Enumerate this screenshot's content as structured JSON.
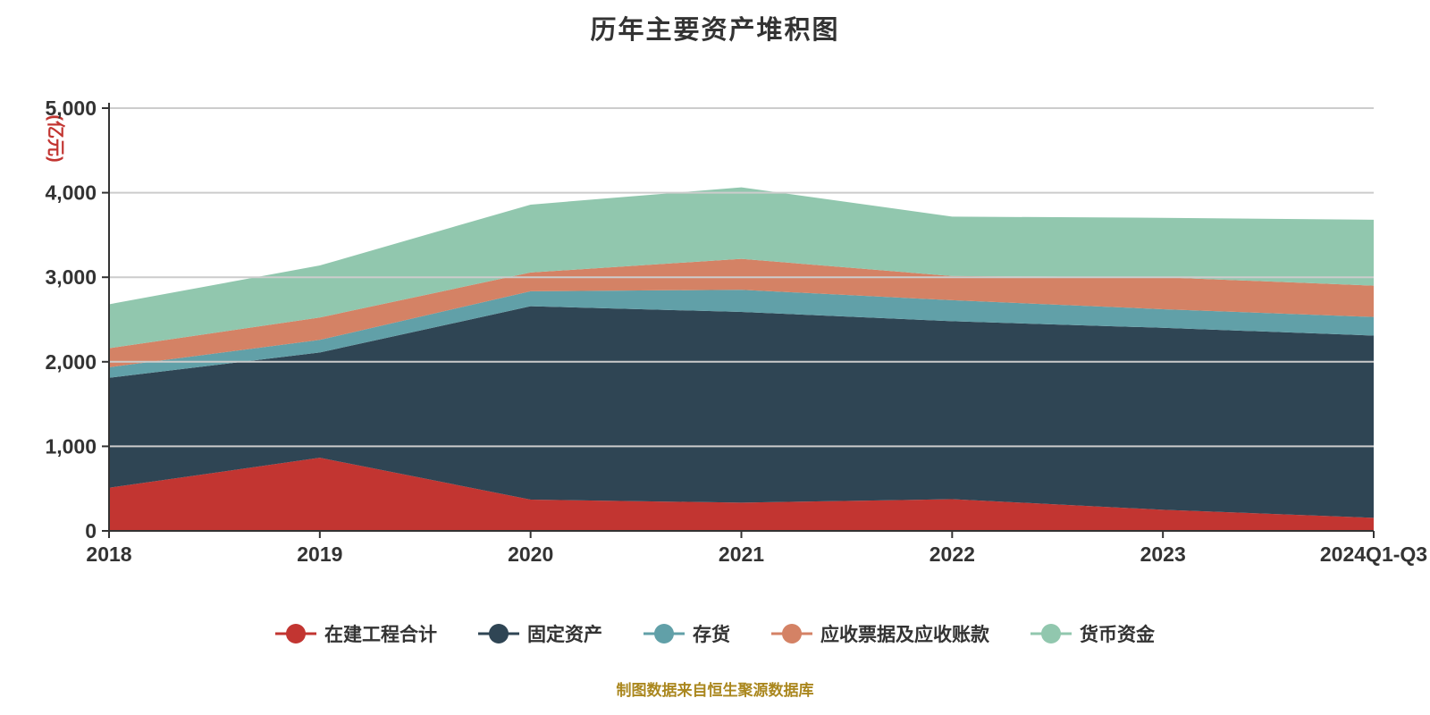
{
  "chart_data": {
    "type": "area",
    "stacked": true,
    "title": "历年主要资产堆积图",
    "y_axis_name": "(亿元)",
    "source_note": "制图数据来自恒生聚源数据库",
    "categories": [
      "2018",
      "2019",
      "2020",
      "2021",
      "2022",
      "2023",
      "2024Q1-Q3"
    ],
    "series": [
      {
        "name": "在建工程合计",
        "color": "#c23531",
        "values": [
          510,
          865,
          370,
          334,
          375,
          250,
          155
        ]
      },
      {
        "name": "固定资产",
        "color": "#2f4554",
        "values": [
          1300,
          1245,
          2287,
          2256,
          2105,
          2152,
          2155
        ]
      },
      {
        "name": "存货",
        "color": "#61a0a8",
        "values": [
          125,
          149,
          177,
          262,
          248,
          220,
          220
        ]
      },
      {
        "name": "应收票据及应收账款",
        "color": "#d48265",
        "values": [
          225,
          265,
          222,
          366,
          286,
          378,
          370
        ]
      },
      {
        "name": "货币资金",
        "color": "#91c7ae",
        "values": [
          520,
          615,
          803,
          845,
          703,
          703,
          780
        ]
      }
    ],
    "ylim": [
      0,
      5000
    ],
    "ytick_labels": [
      "0",
      "1,000",
      "2,000",
      "3,000",
      "4,000",
      "5,000"
    ],
    "ytick_values": [
      0,
      1000,
      2000,
      3000,
      4000,
      5000
    ],
    "grid": true,
    "legend_position": "bottom",
    "colors": {
      "axis": "#333333",
      "grid": "#cccccc",
      "tick_text": "#333333",
      "y_name": "#c23531",
      "source": "#aa871e",
      "background": "#ffffff"
    }
  }
}
